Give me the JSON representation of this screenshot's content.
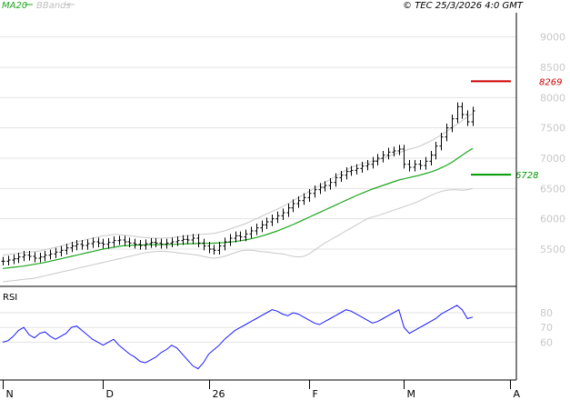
{
  "header": {
    "legend": [
      {
        "label": "MA20",
        "color": "#1fa51f"
      },
      {
        "label": "BBands",
        "color": "#c0c0c0"
      }
    ],
    "timestamp": "© TEC 25/3/2026 4:0 GMT"
  },
  "levels": [
    {
      "value": 8269,
      "label": "8269",
      "color": "#cc0000"
    },
    {
      "value": 6728,
      "label": "6728",
      "color": "#009900"
    }
  ],
  "chart_data": [
    {
      "type": "candlestick",
      "ylim": [
        4900,
        9400
      ],
      "y_ticks": [
        {
          "value": 5500,
          "label": "5500"
        },
        {
          "value": 6000,
          "label": "6000"
        },
        {
          "value": 6500,
          "label": "6500"
        },
        {
          "value": 7000,
          "label": "7000"
        },
        {
          "value": 7500,
          "label": "7500"
        },
        {
          "value": 8000,
          "label": "8000"
        },
        {
          "value": 8500,
          "label": "8500"
        },
        {
          "value": 9000,
          "label": "9000"
        }
      ],
      "x_ticks": [
        {
          "index": 0,
          "label": "N"
        },
        {
          "index": 19,
          "label": "D"
        },
        {
          "index": 39,
          "label": "26"
        },
        {
          "index": 58,
          "label": "F"
        },
        {
          "index": 76,
          "label": "M"
        },
        {
          "index": 96,
          "label": "A"
        }
      ],
      "close": [
        5300,
        5320,
        5340,
        5370,
        5400,
        5380,
        5350,
        5370,
        5400,
        5420,
        5450,
        5480,
        5520,
        5550,
        5580,
        5560,
        5590,
        5620,
        5600,
        5580,
        5610,
        5640,
        5650,
        5620,
        5600,
        5580,
        5560,
        5590,
        5610,
        5600,
        5580,
        5600,
        5620,
        5640,
        5660,
        5650,
        5680,
        5600,
        5550,
        5500,
        5480,
        5550,
        5620,
        5680,
        5720,
        5700,
        5750,
        5800,
        5850,
        5900,
        5950,
        6000,
        6050,
        6100,
        6180,
        6250,
        6300,
        6350,
        6420,
        6480,
        6520,
        6550,
        6600,
        6680,
        6720,
        6780,
        6800,
        6830,
        6870,
        6900,
        6950,
        7000,
        7050,
        7100,
        7120,
        7150,
        6900,
        6850,
        6900,
        6880,
        6950,
        7050,
        7200,
        7350,
        7500,
        7650,
        7850,
        7720,
        7600,
        7780
      ],
      "ma20": [
        5180,
        5190,
        5200,
        5210,
        5220,
        5235,
        5250,
        5265,
        5280,
        5300,
        5320,
        5340,
        5360,
        5380,
        5400,
        5420,
        5440,
        5460,
        5480,
        5500,
        5515,
        5530,
        5545,
        5555,
        5560,
        5565,
        5568,
        5570,
        5572,
        5574,
        5575,
        5576,
        5578,
        5580,
        5585,
        5588,
        5590,
        5592,
        5594,
        5595,
        5598,
        5602,
        5608,
        5615,
        5625,
        5638,
        5652,
        5670,
        5690,
        5715,
        5740,
        5770,
        5800,
        5835,
        5870,
        5905,
        5945,
        5985,
        6025,
        6065,
        6105,
        6145,
        6185,
        6225,
        6265,
        6305,
        6345,
        6385,
        6420,
        6455,
        6490,
        6520,
        6550,
        6580,
        6610,
        6640,
        6660,
        6680,
        6700,
        6720,
        6745,
        6770,
        6800,
        6840,
        6880,
        6930,
        6990,
        7050,
        7110,
        7160
      ],
      "bb_upper": [
        5400,
        5410,
        5420,
        5430,
        5440,
        5450,
        5460,
        5470,
        5490,
        5510,
        5530,
        5550,
        5570,
        5600,
        5620,
        5640,
        5660,
        5680,
        5700,
        5720,
        5730,
        5740,
        5740,
        5730,
        5720,
        5710,
        5700,
        5690,
        5685,
        5680,
        5680,
        5685,
        5690,
        5700,
        5710,
        5720,
        5730,
        5740,
        5745,
        5750,
        5760,
        5780,
        5800,
        5830,
        5860,
        5890,
        5920,
        5960,
        6000,
        6040,
        6080,
        6120,
        6160,
        6200,
        6250,
        6300,
        6350,
        6400,
        6450,
        6500,
        6550,
        6600,
        6650,
        6700,
        6750,
        6800,
        6850,
        6880,
        6900,
        6930,
        6950,
        6970,
        7000,
        7030,
        7060,
        7090,
        7120,
        7150,
        7170,
        7200,
        7240,
        7280,
        7330,
        7380,
        7440,
        7500,
        7560,
        7620,
        7680,
        7740
      ],
      "bb_lower": [
        4960,
        4970,
        4980,
        4990,
        5000,
        5010,
        5020,
        5040,
        5060,
        5080,
        5100,
        5120,
        5140,
        5160,
        5180,
        5200,
        5220,
        5240,
        5260,
        5280,
        5300,
        5320,
        5340,
        5360,
        5380,
        5400,
        5420,
        5440,
        5450,
        5460,
        5465,
        5460,
        5450,
        5440,
        5430,
        5420,
        5410,
        5400,
        5380,
        5360,
        5350,
        5360,
        5380,
        5410,
        5440,
        5470,
        5480,
        5480,
        5470,
        5460,
        5450,
        5440,
        5430,
        5420,
        5400,
        5380,
        5370,
        5380,
        5420,
        5480,
        5540,
        5600,
        5650,
        5700,
        5750,
        5800,
        5850,
        5900,
        5950,
        6000,
        6030,
        6050,
        6080,
        6110,
        6140,
        6170,
        6200,
        6230,
        6260,
        6300,
        6340,
        6380,
        6420,
        6450,
        6470,
        6480,
        6480,
        6470,
        6480,
        6500
      ]
    },
    {
      "type": "line",
      "ylabel": "RSI",
      "ylim": [
        35,
        96
      ],
      "y_ticks": [
        {
          "value": 60,
          "label": "60"
        },
        {
          "value": 70,
          "label": "70"
        },
        {
          "value": 80,
          "label": "80"
        }
      ],
      "values": [
        60,
        61,
        64,
        68,
        70,
        65,
        63,
        66,
        67,
        64,
        62,
        64,
        66,
        70,
        71,
        68,
        65,
        62,
        60,
        58,
        60,
        62,
        58,
        55,
        52,
        50,
        47,
        46,
        48,
        50,
        53,
        55,
        58,
        56,
        52,
        48,
        44,
        42,
        46,
        52,
        55,
        58,
        62,
        65,
        68,
        70,
        72,
        74,
        76,
        78,
        80,
        82,
        81,
        79,
        78,
        80,
        79,
        77,
        75,
        73,
        72,
        74,
        76,
        78,
        80,
        82,
        81,
        79,
        77,
        75,
        73,
        74,
        76,
        78,
        80,
        82,
        70,
        66,
        68,
        70,
        72,
        74,
        76,
        79,
        81,
        83,
        85,
        82,
        76,
        77
      ]
    }
  ]
}
